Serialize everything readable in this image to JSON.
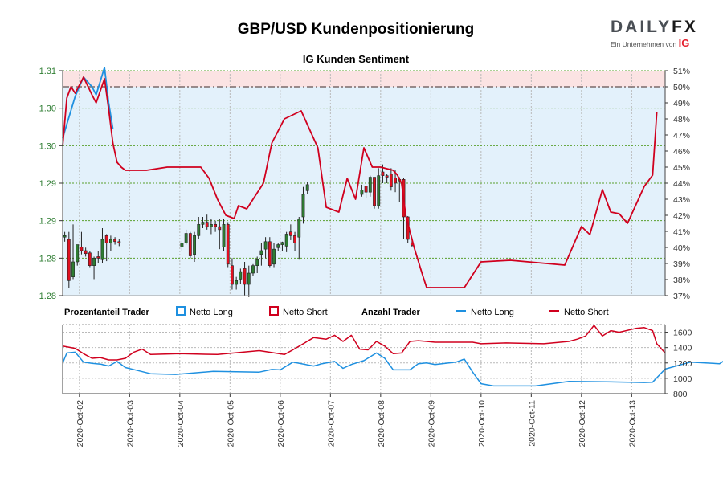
{
  "header": {
    "title": "GBP/USD Kundenpositionierung",
    "subtitle": "IG Kunden Sentiment"
  },
  "logo": {
    "brand_a": "DAILY",
    "brand_b": "FX",
    "tagline": "Ein Unternehmen von",
    "parent": "IG"
  },
  "legend": {
    "group1_title": "Prozentanteil Trader",
    "long_label": "Netto Long",
    "short_label": "Netto Short",
    "group2_title": "Anzahl Trader",
    "long_line_label": "Netto Long",
    "short_line_label": "Netto Short"
  },
  "colors": {
    "long": "#1e90e0",
    "short": "#d0001e",
    "long_bg": "#e3f1fb",
    "short_bg": "#fbe3e3",
    "up_candle": "#2e7d32",
    "down_candle": "#e01020",
    "grid_y": "#5aa02c",
    "ref_line": "#7a6a6a",
    "axis_text": "#333333",
    "price_axis_text": "#2e7d32"
  },
  "chart_data": [
    {
      "type": "candlestick",
      "title": "IG Kunden Sentiment",
      "price_ticks": [
        "1.31",
        "1.30",
        "1.30",
        "1.29",
        "1.29",
        "1.28",
        "1.28"
      ],
      "price_tick_values": [
        1.31,
        1.305,
        1.3,
        1.295,
        1.29,
        1.285,
        1.28
      ],
      "ylim_price": [
        1.28,
        1.31
      ],
      "pct_ticks": [
        "51%",
        "50%",
        "49%",
        "48%",
        "47%",
        "46%",
        "45%",
        "44%",
        "43%",
        "42%",
        "41%",
        "40%",
        "39%",
        "38%",
        "37%"
      ],
      "ylim_pct": [
        37,
        51
      ],
      "reference_line_pct": 50,
      "x_labels": [
        "2020-Oct-02",
        "2020-Oct-03",
        "2020-Oct-04",
        "2020-Oct-05",
        "2020-Oct-06",
        "2020-Oct-07",
        "2020-Oct-08",
        "2020-Oct-09",
        "2020-Oct-10",
        "2020-Oct-11",
        "2020-Oct-12",
        "2020-Oct-13"
      ],
      "candles": [
        [
          0,
          1.2878,
          1.2885,
          1.288,
          1.2872
        ],
        [
          1,
          1.2875,
          1.2885,
          1.282,
          1.281
        ],
        [
          2,
          1.2825,
          1.2895,
          1.2845,
          1.2822
        ],
        [
          3,
          1.2845,
          1.2865,
          1.2868,
          1.284
        ],
        [
          4,
          1.2865,
          1.2885,
          1.286,
          1.2855
        ],
        [
          5,
          1.286,
          1.2864,
          1.2856,
          1.2852
        ],
        [
          6,
          1.2857,
          1.286,
          1.284,
          1.2838
        ],
        [
          7,
          1.284,
          1.2852,
          1.285,
          1.2822
        ],
        [
          8,
          1.2852,
          1.286,
          1.285,
          1.2843
        ],
        [
          9,
          1.2848,
          1.289,
          1.2875,
          1.2843
        ],
        [
          10,
          1.288,
          1.2882,
          1.287,
          1.2846
        ],
        [
          11,
          1.287,
          1.288,
          1.2875,
          1.286
        ],
        [
          12,
          1.2875,
          1.2878,
          1.2872,
          1.2868
        ],
        [
          13,
          1.2872,
          1.2876,
          1.287,
          1.2866
        ],
        [
          28,
          1.2865,
          1.2873,
          1.287,
          1.286
        ],
        [
          29,
          1.287,
          1.2888,
          1.2883,
          1.2868
        ],
        [
          30,
          1.2883,
          1.2885,
          1.2853,
          1.285
        ],
        [
          31,
          1.2855,
          1.2885,
          1.288,
          1.2845
        ],
        [
          32,
          1.288,
          1.2905,
          1.2895,
          1.2875
        ],
        [
          33,
          1.2895,
          1.2905,
          1.2898,
          1.289
        ],
        [
          34,
          1.2898,
          1.2908,
          1.2892,
          1.2888
        ],
        [
          35,
          1.2892,
          1.2902,
          1.2895,
          1.2882
        ],
        [
          36,
          1.2895,
          1.29,
          1.2892,
          1.2885
        ],
        [
          37,
          1.2892,
          1.2902,
          1.2888,
          1.2862
        ],
        [
          38,
          1.2865,
          1.2902,
          1.2895,
          1.286
        ],
        [
          39,
          1.2895,
          1.2898,
          1.2842,
          1.2838
        ],
        [
          40,
          1.284,
          1.285,
          1.2815,
          1.2808
        ],
        [
          41,
          1.2815,
          1.2825,
          1.282,
          1.2808
        ],
        [
          42,
          1.2822,
          1.2836,
          1.2832,
          1.2815
        ],
        [
          43,
          1.2836,
          1.2845,
          1.2815,
          1.28
        ],
        [
          44,
          1.2815,
          1.284,
          1.283,
          1.2798
        ],
        [
          45,
          1.283,
          1.2842,
          1.284,
          1.2826
        ],
        [
          46,
          1.284,
          1.2852,
          1.2848,
          1.283
        ],
        [
          47,
          1.2855,
          1.287,
          1.286,
          1.284
        ],
        [
          48,
          1.2862,
          1.2878,
          1.2872,
          1.285
        ],
        [
          49,
          1.2872,
          1.2878,
          1.284,
          1.2838
        ],
        [
          50,
          1.2842,
          1.287,
          1.2862,
          1.2838
        ],
        [
          51,
          1.2864,
          1.287,
          1.2868,
          1.286
        ],
        [
          52,
          1.2868,
          1.2872,
          1.2871,
          1.286
        ],
        [
          53,
          1.2866,
          1.2885,
          1.2882,
          1.2858
        ],
        [
          54,
          1.2885,
          1.2895,
          1.288,
          1.2874
        ],
        [
          55,
          1.288,
          1.2885,
          1.287,
          1.286
        ],
        [
          56,
          1.2878,
          1.2905,
          1.2902,
          1.2848
        ],
        [
          57,
          1.2905,
          1.2945,
          1.2935,
          1.2896
        ],
        [
          58,
          1.294,
          1.2952,
          1.2948,
          1.2935
        ],
        [
          71,
          1.2935,
          1.2948,
          1.2941,
          1.2932
        ],
        [
          72,
          1.2946,
          1.2946,
          1.2938,
          1.293
        ],
        [
          73,
          1.2938,
          1.296,
          1.2958,
          1.2932
        ],
        [
          74,
          1.2958,
          1.2958,
          1.292,
          1.2916
        ],
        [
          75,
          1.292,
          1.297,
          1.296,
          1.2916
        ],
        [
          76,
          1.2965,
          1.2975,
          1.296,
          1.295
        ],
        [
          77,
          1.296,
          1.2962,
          1.2958,
          1.295
        ],
        [
          78,
          1.2962,
          1.297,
          1.2945,
          1.294
        ],
        [
          79,
          1.2957,
          1.2967,
          1.295,
          1.2938
        ],
        [
          80,
          1.2953,
          1.2958,
          1.2955,
          1.2925
        ],
        [
          81,
          1.2955,
          1.2957,
          1.2905,
          1.2875
        ],
        [
          82,
          1.2905,
          1.2906,
          1.2875,
          1.287
        ],
        [
          83,
          1.287,
          1.2873,
          1.2867,
          1.2865
        ]
      ],
      "net_long_pct": [
        [
          0,
          46.8
        ],
        [
          3,
          49.4
        ],
        [
          5,
          50.6
        ],
        [
          7,
          50.0
        ],
        [
          8,
          49.5
        ],
        [
          10,
          51.2
        ],
        [
          11,
          49.0
        ],
        [
          12,
          47.4
        ]
      ],
      "net_short_pct": [
        [
          0,
          46.3
        ],
        [
          1,
          49.3
        ],
        [
          2,
          50.0
        ],
        [
          3,
          49.6
        ],
        [
          5,
          50.6
        ],
        [
          7,
          49.5
        ],
        [
          8,
          49.0
        ],
        [
          10,
          50.5
        ],
        [
          11,
          48.6
        ],
        [
          12,
          46.5
        ],
        [
          13,
          45.3
        ],
        [
          14,
          45.0
        ],
        [
          15,
          44.8
        ],
        [
          20,
          44.8
        ],
        [
          25,
          45.0
        ],
        [
          33,
          45.0
        ],
        [
          35,
          44.3
        ],
        [
          37,
          43.0
        ],
        [
          39,
          42.0
        ],
        [
          41,
          41.8
        ],
        [
          42,
          42.6
        ],
        [
          44,
          42.4
        ],
        [
          46,
          43.2
        ],
        [
          48,
          44.0
        ],
        [
          50,
          46.5
        ],
        [
          53,
          48.0
        ],
        [
          57,
          48.5
        ],
        [
          61,
          46.2
        ],
        [
          63,
          42.5
        ],
        [
          66,
          42.2
        ],
        [
          68,
          44.3
        ],
        [
          70,
          43.0
        ],
        [
          72,
          46.2
        ],
        [
          74,
          45.0
        ],
        [
          76,
          45.0
        ],
        [
          79,
          44.8
        ],
        [
          80,
          44.5
        ],
        [
          81,
          44.0
        ],
        [
          82,
          42.0
        ],
        [
          84,
          40.0
        ],
        [
          86,
          38.3
        ],
        [
          87,
          37.5
        ],
        [
          89,
          37.5
        ],
        [
          96,
          37.5
        ],
        [
          100,
          39.1
        ],
        [
          107,
          39.2
        ],
        [
          120,
          38.9
        ],
        [
          124,
          41.3
        ],
        [
          126,
          40.8
        ],
        [
          129,
          43.6
        ],
        [
          131,
          42.2
        ],
        [
          133,
          42.1
        ],
        [
          135,
          41.5
        ],
        [
          139,
          43.8
        ],
        [
          141,
          44.5
        ],
        [
          142,
          48.4
        ]
      ],
      "long_trader_counts": [
        [
          0,
          1200
        ],
        [
          1,
          1330
        ],
        [
          3,
          1340
        ],
        [
          5,
          1210
        ],
        [
          7,
          1195
        ],
        [
          9,
          1185
        ],
        [
          11,
          1160
        ],
        [
          13,
          1220
        ],
        [
          15,
          1140
        ],
        [
          18,
          1100
        ],
        [
          21,
          1060
        ],
        [
          27,
          1050
        ],
        [
          36,
          1090
        ],
        [
          47,
          1080
        ],
        [
          50,
          1115
        ],
        [
          52,
          1110
        ],
        [
          55,
          1210
        ],
        [
          60,
          1160
        ],
        [
          62,
          1190
        ],
        [
          65,
          1220
        ],
        [
          67,
          1130
        ],
        [
          69,
          1180
        ],
        [
          72,
          1230
        ],
        [
          75,
          1330
        ],
        [
          77,
          1260
        ],
        [
          79,
          1110
        ],
        [
          83,
          1110
        ],
        [
          85,
          1190
        ],
        [
          87,
          1200
        ],
        [
          89,
          1180
        ],
        [
          94,
          1210
        ],
        [
          96,
          1250
        ],
        [
          98,
          1080
        ],
        [
          100,
          930
        ],
        [
          103,
          900
        ],
        [
          113,
          900
        ],
        [
          121,
          960
        ],
        [
          130,
          955
        ],
        [
          139,
          945
        ],
        [
          141,
          950
        ],
        [
          144,
          1120
        ],
        [
          150,
          1210
        ],
        [
          157,
          1190
        ],
        [
          161,
          1330
        ],
        [
          163,
          1230
        ],
        [
          165,
          1240
        ]
      ],
      "short_trader_counts": [
        [
          0,
          1420
        ],
        [
          3,
          1390
        ],
        [
          5,
          1320
        ],
        [
          7,
          1260
        ],
        [
          9,
          1270
        ],
        [
          11,
          1240
        ],
        [
          13,
          1240
        ],
        [
          15,
          1260
        ],
        [
          17,
          1340
        ],
        [
          19,
          1380
        ],
        [
          21,
          1310
        ],
        [
          28,
          1320
        ],
        [
          37,
          1310
        ],
        [
          47,
          1360
        ],
        [
          53,
          1310
        ],
        [
          55,
          1370
        ],
        [
          60,
          1530
        ],
        [
          63,
          1510
        ],
        [
          65,
          1560
        ],
        [
          67,
          1480
        ],
        [
          69,
          1560
        ],
        [
          71,
          1380
        ],
        [
          73,
          1370
        ],
        [
          75,
          1480
        ],
        [
          77,
          1420
        ],
        [
          79,
          1320
        ],
        [
          81,
          1330
        ],
        [
          83,
          1480
        ],
        [
          85,
          1490
        ],
        [
          87,
          1480
        ],
        [
          89,
          1470
        ],
        [
          91,
          1470
        ],
        [
          95,
          1470
        ],
        [
          98,
          1470
        ],
        [
          100,
          1450
        ],
        [
          106,
          1460
        ],
        [
          115,
          1450
        ],
        [
          121,
          1480
        ],
        [
          123,
          1510
        ],
        [
          125,
          1550
        ],
        [
          127,
          1690
        ],
        [
          129,
          1550
        ],
        [
          131,
          1620
        ],
        [
          133,
          1600
        ],
        [
          137,
          1650
        ],
        [
          139,
          1660
        ],
        [
          141,
          1620
        ],
        [
          142,
          1450
        ],
        [
          144,
          1330
        ]
      ],
      "count_ticks": [
        "1600",
        "1400",
        "1200",
        "1000",
        "800"
      ],
      "count_tick_values": [
        1600,
        1400,
        1200,
        1000,
        800
      ],
      "ylim_count": [
        800,
        1700
      ]
    }
  ]
}
